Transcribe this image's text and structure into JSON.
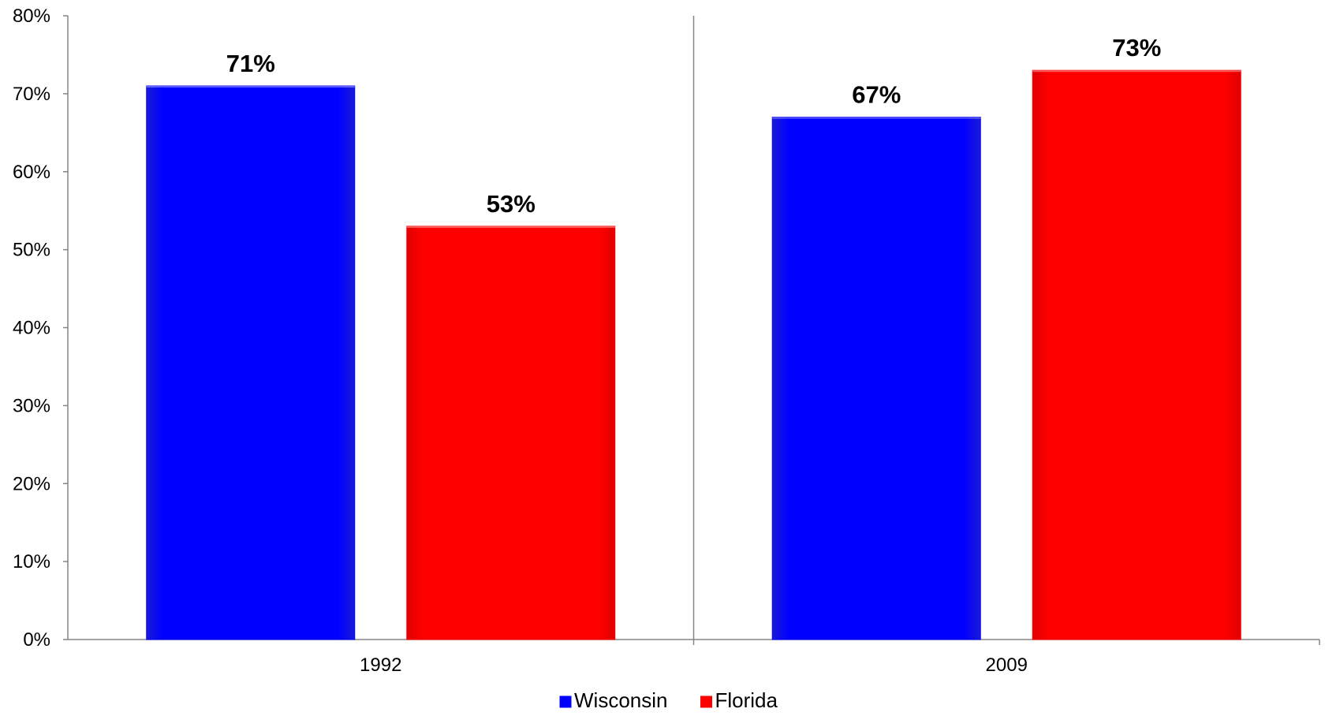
{
  "chart_data": {
    "type": "bar",
    "categories": [
      "1992",
      "2009"
    ],
    "series": [
      {
        "name": "Wisconsin",
        "values": [
          71,
          67
        ],
        "color": "#0000ff"
      },
      {
        "name": "Florida",
        "values": [
          53,
          73
        ],
        "color": "#ff0000"
      }
    ],
    "data_labels": [
      [
        "71%",
        "67%"
      ],
      [
        "53%",
        "73%"
      ]
    ],
    "ylim": [
      0,
      80
    ],
    "yticks": [
      "0%",
      "10%",
      "20%",
      "30%",
      "40%",
      "50%",
      "60%",
      "70%",
      "80%"
    ],
    "ytick_values": [
      0,
      10,
      20,
      30,
      40,
      50,
      60,
      70,
      80
    ],
    "grid": false,
    "category_separator": true,
    "legend_position": "bottom",
    "axis_color": "#868686"
  }
}
